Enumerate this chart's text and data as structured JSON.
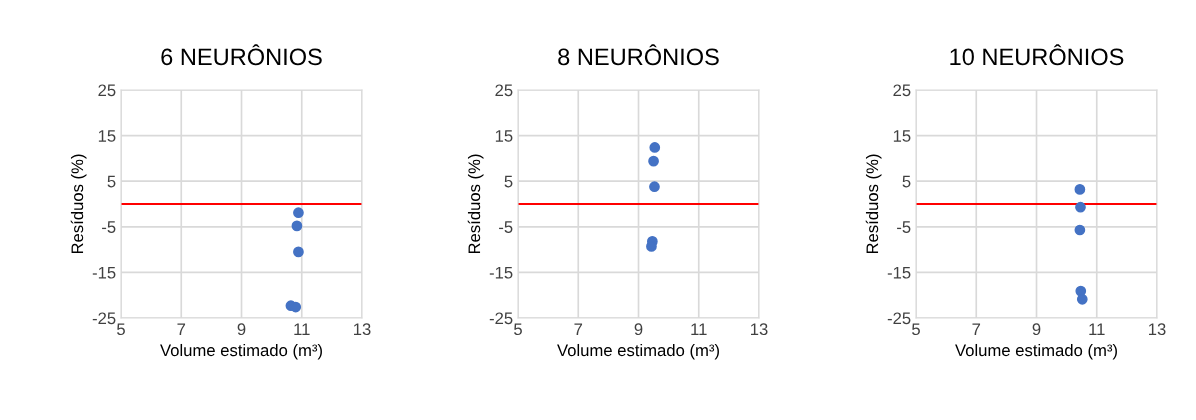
{
  "chart_data": [
    {
      "type": "scatter",
      "title": "6 NEURÔNIOS",
      "xlabel": "Volume estimado (m³)",
      "ylabel": "Resíduos (%)",
      "xlim": [
        5,
        13
      ],
      "xticks": [
        5,
        7,
        9,
        11,
        13
      ],
      "ylim": [
        -25,
        25
      ],
      "yticks": [
        -25,
        -15,
        -5,
        5,
        15,
        25
      ],
      "grid": true,
      "marker": "circle",
      "series": [
        {
          "color": "#4472c4",
          "x": [
            10.89,
            10.84,
            10.89,
            10.64,
            10.8
          ],
          "values": [
            -1.9,
            -4.8,
            -10.5,
            -22.3,
            -22.6
          ]
        }
      ],
      "ref_lines": [
        {
          "axis": "y",
          "value": 0,
          "color": "#ff0000"
        }
      ]
    },
    {
      "type": "scatter",
      "title": "8 NEURÔNIOS",
      "xlabel": "Volume estimado (m³)",
      "ylabel": "Resíduos (%)",
      "xlim": [
        5,
        13
      ],
      "xticks": [
        5,
        7,
        9,
        11,
        13
      ],
      "ylim": [
        -25,
        25
      ],
      "yticks": [
        -25,
        -15,
        -5,
        5,
        15,
        25
      ],
      "grid": true,
      "marker": "circle",
      "series": [
        {
          "color": "#4472c4",
          "x": [
            9.54,
            9.5,
            9.53,
            9.46,
            9.43
          ],
          "values": [
            12.4,
            9.4,
            3.8,
            -8.2,
            -9.3
          ]
        }
      ],
      "ref_lines": [
        {
          "axis": "y",
          "value": 0,
          "color": "#ff0000"
        }
      ]
    },
    {
      "type": "scatter",
      "title": "10 NEURÔNIOS",
      "xlabel": "Volume estimado (m³)",
      "ylabel": "Resíduos (%)",
      "xlim": [
        5,
        13
      ],
      "xticks": [
        5,
        7,
        9,
        11,
        13
      ],
      "ylim": [
        -25,
        25
      ],
      "yticks": [
        -25,
        -15,
        -5,
        5,
        15,
        25
      ],
      "grid": true,
      "marker": "circle",
      "series": [
        {
          "color": "#4472c4",
          "x": [
            10.44,
            10.46,
            10.44,
            10.47,
            10.52
          ],
          "values": [
            3.2,
            -0.7,
            -5.7,
            -19.1,
            -20.9
          ]
        }
      ],
      "ref_lines": [
        {
          "axis": "y",
          "value": 0,
          "color": "#ff0000"
        }
      ]
    }
  ]
}
